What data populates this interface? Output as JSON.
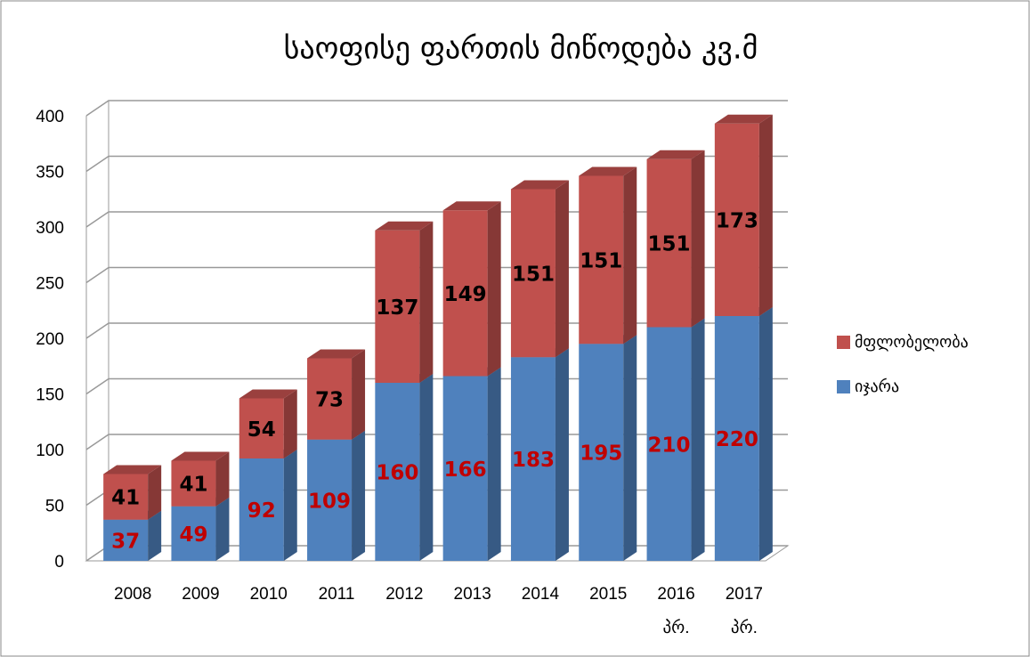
{
  "chart_data": {
    "type": "bar3d_stacked",
    "title": "საოფისე ფართის მიწოდება კვ.მ",
    "categories": [
      "2008",
      "2009",
      "2010",
      "2011",
      "2012",
      "2013",
      "2014",
      "2015",
      "2016 პრ.",
      "2017 პრ."
    ],
    "series": [
      {
        "name": "იჯარა",
        "color": "#4f81bd",
        "values": [
          37,
          49,
          92,
          109,
          160,
          166,
          183,
          195,
          210,
          220
        ]
      },
      {
        "name": "მფლობელობა",
        "color": "#c0504d",
        "values": [
          41,
          41,
          54,
          73,
          137,
          149,
          151,
          151,
          151,
          173
        ]
      }
    ],
    "label_colors": [
      "#c00000",
      "#000000"
    ],
    "ylim": [
      0,
      400
    ],
    "yticks": [
      0,
      50,
      100,
      150,
      200,
      250,
      300,
      350,
      400
    ],
    "grid": true,
    "legend": "right"
  }
}
